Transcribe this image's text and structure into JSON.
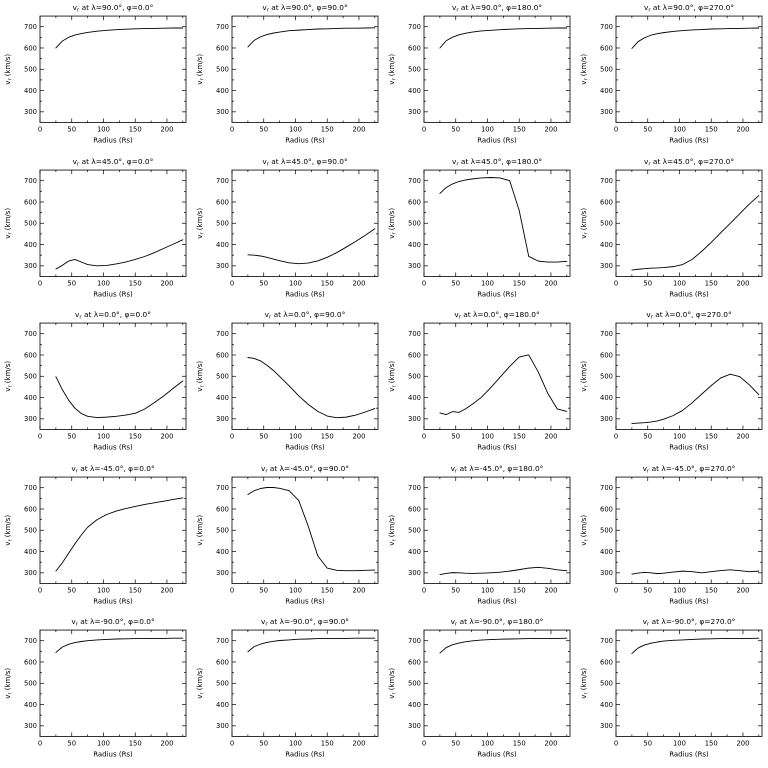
{
  "page": {
    "background": "#ffffff",
    "line_color": "#000000",
    "rows": 5,
    "cols": 4
  },
  "chart_data": {
    "type": "line",
    "grid": false,
    "legend": "none",
    "xlabel": "Radius (Rs)",
    "ylabel": "vr (km/s)",
    "xlim": [
      0,
      230
    ],
    "ylim": [
      250,
      750
    ],
    "xticks": [
      0,
      50,
      100,
      150,
      200
    ],
    "xminor": [
      25,
      75,
      125,
      175,
      225
    ],
    "yticks": [
      300,
      400,
      500,
      600,
      700
    ],
    "yminor": [
      350,
      450,
      550,
      650
    ],
    "x": [
      25,
      35,
      45,
      55,
      65,
      75,
      90,
      105,
      120,
      135,
      150,
      165,
      180,
      195,
      210,
      225
    ],
    "charts": [
      {
        "title": "vr at λ=90.0°, φ=0.0°",
        "lambda": 90,
        "phi": 0,
        "y": [
          600,
          632,
          650,
          661,
          668,
          673,
          679,
          683,
          686,
          688,
          690,
          691,
          692,
          693,
          694,
          694
        ]
      },
      {
        "title": "vr at λ=90.0°, φ=90.0°",
        "lambda": 90,
        "phi": 90,
        "y": [
          605,
          636,
          653,
          663,
          670,
          675,
          681,
          684,
          687,
          689,
          690,
          692,
          693,
          693,
          694,
          695
        ]
      },
      {
        "title": "vr at λ=90.0°, φ=180.0°",
        "lambda": 90,
        "phi": 180,
        "y": [
          600,
          634,
          651,
          662,
          669,
          674,
          680,
          683,
          686,
          688,
          690,
          691,
          692,
          693,
          694,
          694
        ]
      },
      {
        "title": "vr at λ=90.0°, φ=270.0°",
        "lambda": 90,
        "phi": 270,
        "y": [
          598,
          630,
          648,
          660,
          667,
          672,
          678,
          682,
          685,
          687,
          689,
          690,
          691,
          692,
          693,
          694
        ]
      },
      {
        "title": "vr at λ=45.0°, φ=0.0°",
        "lambda": 45,
        "phi": 0,
        "y": [
          285,
          302,
          322,
          330,
          318,
          306,
          300,
          302,
          309,
          318,
          330,
          344,
          362,
          382,
          402,
          422
        ]
      },
      {
        "title": "vr at λ=45.0°, φ=90.0°",
        "lambda": 45,
        "phi": 90,
        "y": [
          352,
          350,
          346,
          340,
          332,
          324,
          314,
          310,
          313,
          323,
          340,
          362,
          388,
          415,
          444,
          474
        ]
      },
      {
        "title": "vr at λ=45.0°, φ=180.0°",
        "lambda": 45,
        "phi": 180,
        "y": [
          640,
          668,
          685,
          696,
          703,
          708,
          713,
          715,
          713,
          700,
          560,
          345,
          322,
          318,
          318,
          321
        ]
      },
      {
        "title": "vr at λ=45.0°, φ=270.0°",
        "lambda": 45,
        "phi": 270,
        "y": [
          280,
          284,
          287,
          289,
          290,
          292,
          296,
          306,
          330,
          368,
          410,
          455,
          500,
          545,
          590,
          630
        ]
      },
      {
        "title": "vr at λ=0.0°, φ=0.0°",
        "lambda": 0,
        "phi": 0,
        "y": [
          498,
          438,
          388,
          350,
          325,
          312,
          306,
          308,
          312,
          318,
          326,
          346,
          376,
          408,
          444,
          478
        ]
      },
      {
        "title": "vr at λ=0.0°, φ=90.0°",
        "lambda": 0,
        "phi": 90,
        "y": [
          588,
          584,
          572,
          552,
          528,
          499,
          455,
          408,
          368,
          335,
          313,
          305,
          308,
          318,
          332,
          348
        ]
      },
      {
        "title": "vr at λ=0.0°, φ=180.0°",
        "lambda": 0,
        "phi": 180,
        "y": [
          328,
          320,
          334,
          330,
          346,
          366,
          400,
          446,
          496,
          546,
          590,
          601,
          520,
          420,
          346,
          335
        ]
      },
      {
        "title": "vr at λ=0.0°, φ=270.0°",
        "lambda": 0,
        "phi": 270,
        "y": [
          278,
          280,
          282,
          285,
          290,
          298,
          315,
          340,
          376,
          416,
          456,
          492,
          510,
          498,
          460,
          414
        ]
      },
      {
        "title": "vr at λ=-45.0°, φ=0.0°",
        "lambda": -45,
        "phi": 0,
        "y": [
          308,
          346,
          392,
          436,
          478,
          514,
          550,
          574,
          590,
          602,
          612,
          621,
          629,
          637,
          645,
          652
        ]
      },
      {
        "title": "vr at λ=-45.0°, φ=90.0°",
        "lambda": -45,
        "phi": 90,
        "y": [
          668,
          686,
          696,
          701,
          701,
          697,
          686,
          640,
          520,
          380,
          322,
          312,
          310,
          310,
          312,
          313
        ]
      },
      {
        "title": "vr at λ=-45.0°, φ=180.0°",
        "lambda": -45,
        "phi": 180,
        "y": [
          292,
          297,
          301,
          300,
          298,
          297,
          298,
          300,
          303,
          308,
          315,
          322,
          326,
          321,
          314,
          310
        ]
      },
      {
        "title": "vr at λ=-45.0°, φ=270.0°",
        "lambda": -45,
        "phi": 270,
        "y": [
          294,
          299,
          302,
          300,
          296,
          298,
          304,
          308,
          305,
          300,
          305,
          311,
          314,
          310,
          305,
          308
        ]
      },
      {
        "title": "vr at λ=-90.0°, φ=0.0°",
        "lambda": -90,
        "phi": 0,
        "y": [
          645,
          670,
          683,
          691,
          696,
          700,
          704,
          706,
          708,
          709,
          710,
          710,
          711,
          711,
          712,
          712
        ]
      },
      {
        "title": "vr at λ=-90.0°, φ=90.0°",
        "lambda": -90,
        "phi": 90,
        "y": [
          648,
          672,
          684,
          692,
          697,
          701,
          704,
          707,
          708,
          710,
          710,
          711,
          711,
          712,
          712,
          712
        ]
      },
      {
        "title": "vr at λ=-90.0°, φ=180.0°",
        "lambda": -90,
        "phi": 180,
        "y": [
          642,
          668,
          681,
          689,
          695,
          699,
          703,
          705,
          707,
          708,
          709,
          710,
          710,
          711,
          711,
          712
        ]
      },
      {
        "title": "vr at λ=-90.0°, φ=270.0°",
        "lambda": -90,
        "phi": 270,
        "y": [
          640,
          666,
          680,
          688,
          694,
          698,
          702,
          704,
          706,
          708,
          709,
          710,
          710,
          711,
          711,
          712
        ]
      }
    ]
  }
}
